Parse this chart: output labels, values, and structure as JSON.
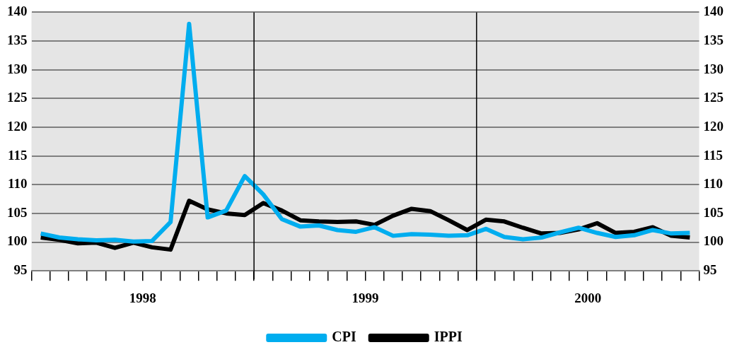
{
  "chart_data": {
    "type": "line",
    "x": [
      1998.0417,
      1998.125,
      1998.2083,
      1998.2917,
      1998.375,
      1998.4583,
      1998.5417,
      1998.625,
      1998.7083,
      1998.7917,
      1998.875,
      1998.9583,
      1999.0417,
      1999.125,
      1999.2083,
      1999.2917,
      1999.375,
      1999.4583,
      1999.5417,
      1999.625,
      1999.7083,
      1999.7917,
      1999.875,
      1999.9583,
      2000.0417,
      2000.125,
      2000.2083,
      2000.2917,
      2000.375,
      2000.4583,
      2000.5417,
      2000.625,
      2000.7083,
      2000.7917,
      2000.875,
      2000.9583
    ],
    "series": [
      {
        "name": "CPI",
        "color": "#00adef",
        "values": [
          101.5,
          100.8,
          100.5,
          100.3,
          100.4,
          100.1,
          100.2,
          103.5,
          138,
          104.3,
          105.5,
          111.5,
          108.3,
          104,
          102.7,
          102.9,
          102.1,
          101.8,
          102.6,
          101.1,
          101.4,
          101.3,
          101.1,
          101.2,
          102.3,
          100.9,
          100.5,
          100.8,
          101.7,
          102.5,
          101.6,
          100.9,
          101.2,
          102.1,
          101.5,
          101.6
        ]
      },
      {
        "name": "IPPI",
        "color": "#000000",
        "values": [
          100.8,
          100.4,
          99.8,
          99.9,
          99,
          99.9,
          99.1,
          98.7,
          107.2,
          105.7,
          105,
          104.7,
          106.8,
          105.5,
          103.8,
          103.6,
          103.5,
          103.6,
          103,
          104.6,
          105.8,
          105.4,
          103.8,
          102.1,
          103.9,
          103.6,
          102.5,
          101.5,
          101.6,
          102.2,
          103.3,
          101.6,
          101.8,
          102.6,
          101.1,
          100.8
        ]
      }
    ],
    "xlim": [
      1998,
      2001
    ],
    "xticks": [
      {
        "value": 1998,
        "label": null
      },
      {
        "value": 1998.0833,
        "label": null
      },
      {
        "value": 1998.1667,
        "label": null
      },
      {
        "value": 1998.25,
        "label": null
      },
      {
        "value": 1998.3333,
        "label": null
      },
      {
        "value": 1998.4167,
        "label": null
      },
      {
        "value": 1998.5,
        "label": "1998"
      },
      {
        "value": 1998.5833,
        "label": null
      },
      {
        "value": 1998.6667,
        "label": null
      },
      {
        "value": 1998.75,
        "label": null
      },
      {
        "value": 1998.8333,
        "label": null
      },
      {
        "value": 1998.9167,
        "label": null
      },
      {
        "value": 1999,
        "label": null
      },
      {
        "value": 1999.0833,
        "label": null
      },
      {
        "value": 1999.1667,
        "label": null
      },
      {
        "value": 1999.25,
        "label": null
      },
      {
        "value": 1999.3333,
        "label": null
      },
      {
        "value": 1999.4167,
        "label": null
      },
      {
        "value": 1999.5,
        "label": "1999"
      },
      {
        "value": 1999.5833,
        "label": null
      },
      {
        "value": 1999.6667,
        "label": null
      },
      {
        "value": 1999.75,
        "label": null
      },
      {
        "value": 1999.8333,
        "label": null
      },
      {
        "value": 1999.9167,
        "label": null
      },
      {
        "value": 2000,
        "label": null
      },
      {
        "value": 2000.0833,
        "label": null
      },
      {
        "value": 2000.1667,
        "label": null
      },
      {
        "value": 2000.25,
        "label": null
      },
      {
        "value": 2000.3333,
        "label": null
      },
      {
        "value": 2000.4167,
        "label": null
      },
      {
        "value": 2000.5,
        "label": "2000"
      },
      {
        "value": 2000.5833,
        "label": null
      },
      {
        "value": 2000.6667,
        "label": null
      },
      {
        "value": 2000.75,
        "label": null
      },
      {
        "value": 2000.8333,
        "label": null
      },
      {
        "value": 2000.9167,
        "label": null
      },
      {
        "value": 2001,
        "label": null
      }
    ],
    "ylim": [
      95,
      140
    ],
    "yticks": [
      95,
      100,
      105,
      110,
      115,
      120,
      125,
      130,
      135,
      140
    ],
    "y2lim": [
      95,
      140
    ],
    "y2ticks": [
      95,
      100,
      105,
      110,
      115,
      120,
      125,
      130,
      135,
      140
    ],
    "ref_lines": [
      {
        "axis": "x",
        "value": 1999,
        "color": "#000000"
      },
      {
        "axis": "x",
        "value": 2000,
        "color": "#000000"
      }
    ],
    "grid": "y",
    "legend": "bottom",
    "marker": "none",
    "line_style": "solid"
  }
}
